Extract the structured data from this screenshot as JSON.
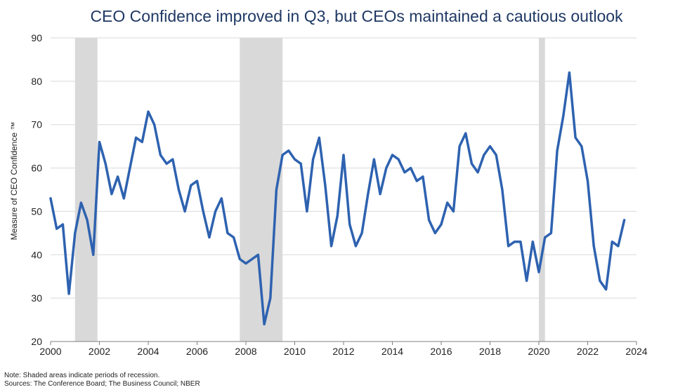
{
  "chart_data": {
    "type": "line",
    "title": "CEO Confidence improved in Q3, but CEOs maintained a cautious outlook",
    "ylabel": "Measure of CEO Confidence ™",
    "xlabel": "",
    "xlim": [
      2000,
      2024
    ],
    "ylim": [
      20,
      90
    ],
    "x_ticks": [
      "2000",
      "2002",
      "2004",
      "2006",
      "2008",
      "2010",
      "2012",
      "2014",
      "2016",
      "2018",
      "2020",
      "2022",
      "2024"
    ],
    "y_ticks": [
      "20",
      "30",
      "40",
      "50",
      "60",
      "70",
      "80",
      "90"
    ],
    "grid": true,
    "line_color": "#2e62b0",
    "shade_color": "#d9d9d9",
    "recessions": [
      [
        2001.0,
        2001.92
      ],
      [
        2007.75,
        2009.5
      ],
      [
        2020.0,
        2020.25
      ]
    ],
    "series": [
      {
        "values": [
          [
            2000.0,
            53
          ],
          [
            2000.25,
            46
          ],
          [
            2000.5,
            47
          ],
          [
            2000.75,
            31
          ],
          [
            2001.0,
            45
          ],
          [
            2001.25,
            52
          ],
          [
            2001.5,
            48
          ],
          [
            2001.75,
            40
          ],
          [
            2002.0,
            66
          ],
          [
            2002.25,
            61
          ],
          [
            2002.5,
            54
          ],
          [
            2002.75,
            58
          ],
          [
            2003.0,
            53
          ],
          [
            2003.25,
            60
          ],
          [
            2003.5,
            67
          ],
          [
            2003.75,
            66
          ],
          [
            2004.0,
            73
          ],
          [
            2004.25,
            70
          ],
          [
            2004.5,
            63
          ],
          [
            2004.75,
            61
          ],
          [
            2005.0,
            62
          ],
          [
            2005.25,
            55
          ],
          [
            2005.5,
            50
          ],
          [
            2005.75,
            56
          ],
          [
            2006.0,
            57
          ],
          [
            2006.25,
            50
          ],
          [
            2006.5,
            44
          ],
          [
            2006.75,
            50
          ],
          [
            2007.0,
            53
          ],
          [
            2007.25,
            45
          ],
          [
            2007.5,
            44
          ],
          [
            2007.75,
            39
          ],
          [
            2008.0,
            38
          ],
          [
            2008.25,
            39
          ],
          [
            2008.5,
            40
          ],
          [
            2008.75,
            24
          ],
          [
            2009.0,
            30
          ],
          [
            2009.25,
            55
          ],
          [
            2009.5,
            63
          ],
          [
            2009.75,
            64
          ],
          [
            2010.0,
            62
          ],
          [
            2010.25,
            61
          ],
          [
            2010.5,
            50
          ],
          [
            2010.75,
            62
          ],
          [
            2011.0,
            67
          ],
          [
            2011.25,
            56
          ],
          [
            2011.5,
            42
          ],
          [
            2011.75,
            49
          ],
          [
            2012.0,
            63
          ],
          [
            2012.25,
            47
          ],
          [
            2012.5,
            42
          ],
          [
            2012.75,
            45
          ],
          [
            2013.0,
            54
          ],
          [
            2013.25,
            62
          ],
          [
            2013.5,
            54
          ],
          [
            2013.75,
            60
          ],
          [
            2014.0,
            63
          ],
          [
            2014.25,
            62
          ],
          [
            2014.5,
            59
          ],
          [
            2014.75,
            60
          ],
          [
            2015.0,
            57
          ],
          [
            2015.25,
            58
          ],
          [
            2015.5,
            48
          ],
          [
            2015.75,
            45
          ],
          [
            2016.0,
            47
          ],
          [
            2016.25,
            52
          ],
          [
            2016.5,
            50
          ],
          [
            2016.75,
            65
          ],
          [
            2017.0,
            68
          ],
          [
            2017.25,
            61
          ],
          [
            2017.5,
            59
          ],
          [
            2017.75,
            63
          ],
          [
            2018.0,
            65
          ],
          [
            2018.25,
            63
          ],
          [
            2018.5,
            55
          ],
          [
            2018.75,
            42
          ],
          [
            2019.0,
            43
          ],
          [
            2019.25,
            43
          ],
          [
            2019.5,
            34
          ],
          [
            2019.75,
            43
          ],
          [
            2020.0,
            36
          ],
          [
            2020.25,
            44
          ],
          [
            2020.5,
            45
          ],
          [
            2020.75,
            64
          ],
          [
            2021.0,
            72
          ],
          [
            2021.25,
            82
          ],
          [
            2021.5,
            67
          ],
          [
            2021.75,
            65
          ],
          [
            2022.0,
            57
          ],
          [
            2022.25,
            42
          ],
          [
            2022.5,
            34
          ],
          [
            2022.75,
            32
          ],
          [
            2023.0,
            43
          ],
          [
            2023.25,
            42
          ],
          [
            2023.5,
            48
          ]
        ]
      }
    ]
  },
  "notes": {
    "line1": "Note: Shaded areas indicate periods of  recession.",
    "line2": "Sources: The  Conference Board; The Business Council; NBER"
  }
}
